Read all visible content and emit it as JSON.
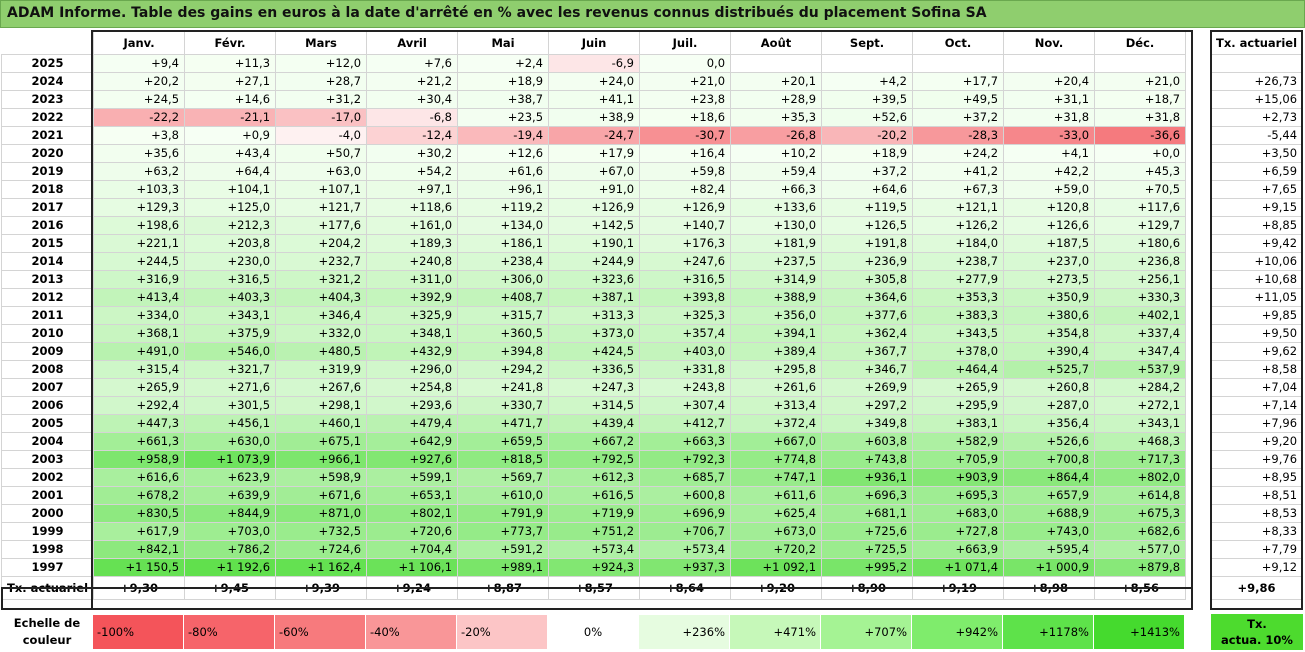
{
  "title": "ADAM Informe. Table des gains en euros à la date d'arrêté en % avec les revenus connus distribués du placement Sofina SA",
  "months": [
    "Janv.",
    "Févr.",
    "Mars",
    "Avril",
    "Mai",
    "Juin",
    "Juil.",
    "Août",
    "Sept.",
    "Oct.",
    "Nov.",
    "Déc."
  ],
  "right_header": "Tx. actuariel",
  "rows": [
    {
      "year": "2025",
      "values": [
        "+9,4",
        "+11,3",
        "+12,0",
        "+7,6",
        "+2,4",
        "-6,9",
        "0,0",
        "",
        "",
        "",
        "",
        ""
      ],
      "tx": ""
    },
    {
      "year": "2024",
      "values": [
        "+20,2",
        "+27,1",
        "+28,7",
        "+21,2",
        "+18,9",
        "+24,0",
        "+21,0",
        "+20,1",
        "+4,2",
        "+17,7",
        "+20,4",
        "+21,0"
      ],
      "tx": "+26,73"
    },
    {
      "year": "2023",
      "values": [
        "+24,5",
        "+14,6",
        "+31,2",
        "+30,4",
        "+38,7",
        "+41,1",
        "+23,8",
        "+28,9",
        "+39,5",
        "+49,5",
        "+31,1",
        "+18,7"
      ],
      "tx": "+15,06"
    },
    {
      "year": "2022",
      "values": [
        "-22,2",
        "-21,1",
        "-17,0",
        "-6,8",
        "+23,5",
        "+38,9",
        "+18,6",
        "+35,3",
        "+52,6",
        "+37,2",
        "+31,8",
        "+31,8"
      ],
      "tx": "+2,73"
    },
    {
      "year": "2021",
      "values": [
        "+3,8",
        "+0,9",
        "-4,0",
        "-12,4",
        "-19,4",
        "-24,7",
        "-30,7",
        "-26,8",
        "-20,2",
        "-28,3",
        "-33,0",
        "-36,6"
      ],
      "tx": "-5,44"
    },
    {
      "year": "2020",
      "values": [
        "+35,6",
        "+43,4",
        "+50,7",
        "+30,2",
        "+12,6",
        "+17,9",
        "+16,4",
        "+10,2",
        "+18,9",
        "+24,2",
        "+4,1",
        "+0,0"
      ],
      "tx": "+3,50"
    },
    {
      "year": "2019",
      "values": [
        "+63,2",
        "+64,4",
        "+63,0",
        "+54,2",
        "+61,6",
        "+67,0",
        "+59,8",
        "+59,4",
        "+37,2",
        "+41,2",
        "+42,2",
        "+45,3"
      ],
      "tx": "+6,59"
    },
    {
      "year": "2018",
      "values": [
        "+103,3",
        "+104,1",
        "+107,1",
        "+97,1",
        "+96,1",
        "+91,0",
        "+82,4",
        "+66,3",
        "+64,6",
        "+67,3",
        "+59,0",
        "+70,5"
      ],
      "tx": "+7,65"
    },
    {
      "year": "2017",
      "values": [
        "+129,3",
        "+125,0",
        "+121,7",
        "+118,6",
        "+119,2",
        "+126,9",
        "+126,9",
        "+133,6",
        "+119,5",
        "+121,1",
        "+120,8",
        "+117,6"
      ],
      "tx": "+9,15"
    },
    {
      "year": "2016",
      "values": [
        "+198,6",
        "+212,3",
        "+177,6",
        "+161,0",
        "+134,0",
        "+142,5",
        "+140,7",
        "+130,0",
        "+126,5",
        "+126,2",
        "+126,6",
        "+129,7"
      ],
      "tx": "+8,85"
    },
    {
      "year": "2015",
      "values": [
        "+221,1",
        "+203,8",
        "+204,2",
        "+189,3",
        "+186,1",
        "+190,1",
        "+176,3",
        "+181,9",
        "+191,8",
        "+184,0",
        "+187,5",
        "+180,6"
      ],
      "tx": "+9,42"
    },
    {
      "year": "2014",
      "values": [
        "+244,5",
        "+230,0",
        "+232,7",
        "+240,8",
        "+238,4",
        "+244,9",
        "+247,6",
        "+237,5",
        "+236,9",
        "+238,7",
        "+237,0",
        "+236,8"
      ],
      "tx": "+10,06"
    },
    {
      "year": "2013",
      "values": [
        "+316,9",
        "+316,5",
        "+321,2",
        "+311,0",
        "+306,0",
        "+323,6",
        "+316,5",
        "+314,9",
        "+305,8",
        "+277,9",
        "+273,5",
        "+256,1"
      ],
      "tx": "+10,68"
    },
    {
      "year": "2012",
      "values": [
        "+413,4",
        "+403,3",
        "+404,3",
        "+392,9",
        "+408,7",
        "+387,1",
        "+393,8",
        "+388,9",
        "+364,6",
        "+353,3",
        "+350,9",
        "+330,3"
      ],
      "tx": "+11,05"
    },
    {
      "year": "2011",
      "values": [
        "+334,0",
        "+343,1",
        "+346,4",
        "+325,9",
        "+315,7",
        "+313,3",
        "+325,3",
        "+356,0",
        "+377,6",
        "+383,3",
        "+380,6",
        "+402,1"
      ],
      "tx": "+9,85"
    },
    {
      "year": "2010",
      "values": [
        "+368,1",
        "+375,9",
        "+332,0",
        "+348,1",
        "+360,5",
        "+373,0",
        "+357,4",
        "+394,1",
        "+362,4",
        "+343,5",
        "+354,8",
        "+337,4"
      ],
      "tx": "+9,50"
    },
    {
      "year": "2009",
      "values": [
        "+491,0",
        "+546,0",
        "+480,5",
        "+432,9",
        "+394,8",
        "+424,5",
        "+403,0",
        "+389,4",
        "+367,7",
        "+378,0",
        "+390,4",
        "+347,4"
      ],
      "tx": "+9,62"
    },
    {
      "year": "2008",
      "values": [
        "+315,4",
        "+321,7",
        "+319,9",
        "+296,0",
        "+294,2",
        "+336,5",
        "+331,8",
        "+295,8",
        "+346,7",
        "+464,4",
        "+525,7",
        "+537,9"
      ],
      "tx": "+8,58"
    },
    {
      "year": "2007",
      "values": [
        "+265,9",
        "+271,6",
        "+267,6",
        "+254,8",
        "+241,8",
        "+247,3",
        "+243,8",
        "+261,6",
        "+269,9",
        "+265,9",
        "+260,8",
        "+284,2"
      ],
      "tx": "+7,04"
    },
    {
      "year": "2006",
      "values": [
        "+292,4",
        "+301,5",
        "+298,1",
        "+293,6",
        "+330,7",
        "+314,5",
        "+307,4",
        "+313,4",
        "+297,2",
        "+295,9",
        "+287,0",
        "+272,1"
      ],
      "tx": "+7,14"
    },
    {
      "year": "2005",
      "values": [
        "+447,3",
        "+456,1",
        "+460,1",
        "+479,4",
        "+471,7",
        "+439,4",
        "+412,7",
        "+372,4",
        "+349,8",
        "+383,1",
        "+356,4",
        "+343,1"
      ],
      "tx": "+7,96"
    },
    {
      "year": "2004",
      "values": [
        "+661,3",
        "+630,0",
        "+675,1",
        "+642,9",
        "+659,5",
        "+667,2",
        "+663,3",
        "+667,0",
        "+603,8",
        "+582,9",
        "+526,6",
        "+468,3"
      ],
      "tx": "+9,20"
    },
    {
      "year": "2003",
      "values": [
        "+958,9",
        "+1 073,9",
        "+966,1",
        "+927,6",
        "+818,5",
        "+792,5",
        "+792,3",
        "+774,8",
        "+743,8",
        "+705,9",
        "+700,8",
        "+717,3"
      ],
      "tx": "+9,76"
    },
    {
      "year": "2002",
      "values": [
        "+616,6",
        "+623,9",
        "+598,9",
        "+599,1",
        "+569,7",
        "+612,3",
        "+685,7",
        "+747,1",
        "+936,1",
        "+903,9",
        "+864,4",
        "+802,0"
      ],
      "tx": "+8,95"
    },
    {
      "year": "2001",
      "values": [
        "+678,2",
        "+639,9",
        "+671,6",
        "+653,1",
        "+610,0",
        "+616,5",
        "+600,8",
        "+611,6",
        "+696,3",
        "+695,3",
        "+657,9",
        "+614,8"
      ],
      "tx": "+8,51"
    },
    {
      "year": "2000",
      "values": [
        "+830,5",
        "+844,9",
        "+871,0",
        "+802,1",
        "+791,9",
        "+719,9",
        "+696,9",
        "+625,4",
        "+681,1",
        "+683,0",
        "+688,9",
        "+675,3"
      ],
      "tx": "+8,53"
    },
    {
      "year": "1999",
      "values": [
        "+617,9",
        "+703,0",
        "+732,5",
        "+720,6",
        "+773,7",
        "+751,2",
        "+706,7",
        "+673,0",
        "+725,6",
        "+727,8",
        "+743,0",
        "+682,6"
      ],
      "tx": "+8,33"
    },
    {
      "year": "1998",
      "values": [
        "+842,1",
        "+786,2",
        "+724,6",
        "+704,4",
        "+591,2",
        "+573,4",
        "+573,4",
        "+720,2",
        "+725,5",
        "+663,9",
        "+595,4",
        "+577,0"
      ],
      "tx": "+7,79"
    },
    {
      "year": "1997",
      "values": [
        "+1 150,5",
        "+1 192,6",
        "+1 162,4",
        "+1 106,1",
        "+989,1",
        "+924,3",
        "+937,3",
        "+1 092,1",
        "+995,2",
        "+1 071,4",
        "+1 000,9",
        "+879,8"
      ],
      "tx": "+9,12"
    }
  ],
  "tx_row": {
    "label": "Tx. actuariel",
    "values": [
      "+9,30",
      "+9,45",
      "+9,39",
      "+9,24",
      "+8,87",
      "+8,57",
      "+8,64",
      "+9,20",
      "+8,90",
      "+9,19",
      "+8,98",
      "+8,56"
    ],
    "tx": "+9,86"
  },
  "scale": {
    "label_line1": "Echelle de",
    "label_line2": "couleur",
    "items": [
      {
        "label": "-100%",
        "color": "#f4545a"
      },
      {
        "label": "-80%",
        "color": "#f6646a"
      },
      {
        "label": "-60%",
        "color": "#f77a7d"
      },
      {
        "label": "-40%",
        "color": "#f99698"
      },
      {
        "label": "-20%",
        "color": "#fcc5c6"
      },
      {
        "label": "0%",
        "color": "#ffffff"
      },
      {
        "label": "+236%",
        "color": "#e6fce0"
      },
      {
        "label": "+471%",
        "color": "#c6f8b9"
      },
      {
        "label": "+707%",
        "color": "#a5f394"
      },
      {
        "label": "+942%",
        "color": "#7fec6c"
      },
      {
        "label": "+1178%",
        "color": "#5ee24a"
      },
      {
        "label": "+1413%",
        "color": "#45da2e"
      }
    ],
    "tx_label_line1": "Tx.",
    "tx_label_line2": "actua. 10%"
  },
  "colors": {
    "banner": "#8fce6e",
    "tx_highlight": "#4ddb2e",
    "negative_max": "#f4545a",
    "positive_max": "#45da2e"
  }
}
